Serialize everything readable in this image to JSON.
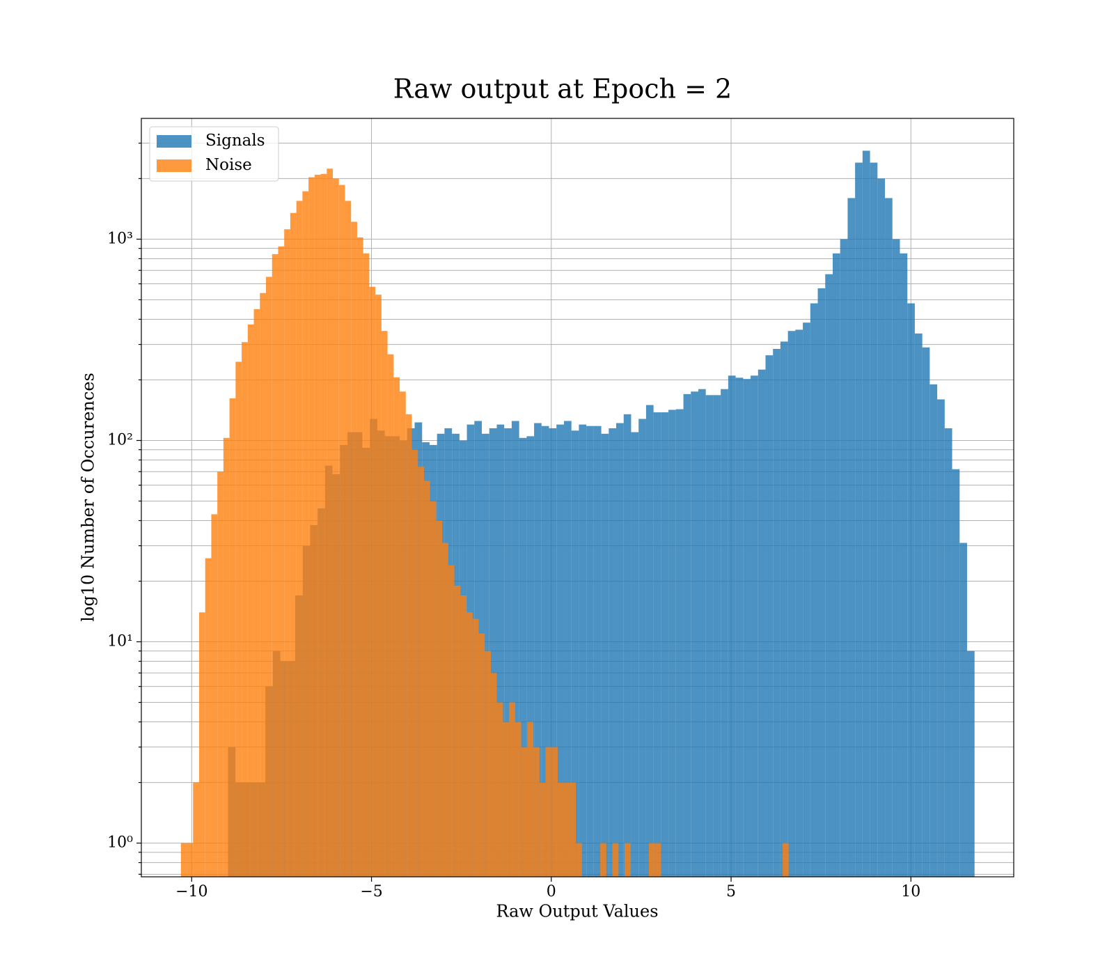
{
  "chart_data": {
    "type": "histogram",
    "title": "Raw output at Epoch = 2",
    "xlabel": "Raw Output Values",
    "ylabel": "log10 Number of Occurences",
    "log_y": true,
    "grid": true,
    "legend_loc": "upper left",
    "xlim": [
      -11.4,
      12.86
    ],
    "ylim": [
      0.68,
      3981
    ],
    "xticks": [
      {
        "value": -10,
        "label": "−10"
      },
      {
        "value": -5,
        "label": "−5"
      },
      0,
      5,
      10
    ],
    "yticks": [
      {
        "value": 1,
        "label": "10⁰"
      },
      {
        "value": 10,
        "label": "10¹"
      },
      {
        "value": 100,
        "label": "10²"
      },
      {
        "value": 1000,
        "label": "10³"
      }
    ],
    "yminorticks": [
      0.7,
      0.8,
      0.9,
      2,
      3,
      4,
      5,
      6,
      7,
      8,
      9,
      20,
      30,
      40,
      50,
      60,
      70,
      80,
      90,
      200,
      300,
      400,
      500,
      600,
      700,
      800,
      900,
      2000,
      3000
    ],
    "series": [
      {
        "name": "Signals",
        "color": "#1f77b4",
        "bins": [
          -8.99,
          -8.782,
          -8.575,
          -8.367,
          -8.16,
          -7.952,
          -7.744,
          -7.537,
          -7.329,
          -7.122,
          -6.914,
          -6.706,
          -6.499,
          -6.291,
          -6.084,
          -5.876,
          -5.668,
          -5.461,
          -5.253,
          -5.046,
          -4.838,
          -4.63,
          -4.423,
          -4.215,
          -4.008,
          -3.8,
          -3.592,
          -3.385,
          -3.177,
          -2.97,
          -2.762,
          -2.554,
          -2.347,
          -2.139,
          -1.932,
          -1.724,
          -1.516,
          -1.309,
          -1.101,
          -0.894,
          -0.686,
          -0.478,
          -0.271,
          -0.063,
          0.144,
          0.352,
          0.56,
          0.767,
          0.975,
          1.182,
          1.39,
          1.598,
          1.805,
          2.013,
          2.22,
          2.428,
          2.636,
          2.843,
          3.051,
          3.258,
          3.466,
          3.674,
          3.881,
          4.089,
          4.296,
          4.504,
          4.712,
          4.919,
          5.127,
          5.334,
          5.542,
          5.75,
          5.957,
          6.165,
          6.372,
          6.58,
          6.788,
          6.995,
          7.203,
          7.41,
          7.618,
          7.826,
          8.033,
          8.241,
          8.448,
          8.656,
          8.864,
          9.071,
          9.279,
          9.486,
          9.694,
          9.902,
          10.109,
          10.317,
          10.524,
          10.732,
          10.94,
          11.147,
          11.355,
          11.562,
          11.77
        ],
        "values": [
          3,
          2,
          2,
          2,
          2,
          6,
          9,
          8,
          8,
          17,
          30,
          38,
          46,
          75,
          68,
          95,
          110,
          110,
          92,
          128,
          112,
          105,
          105,
          100,
          115,
          123,
          98,
          95,
          108,
          115,
          108,
          100,
          120,
          125,
          108,
          115,
          120,
          115,
          125,
          103,
          105,
          122,
          118,
          115,
          120,
          125,
          112,
          120,
          118,
          118,
          108,
          115,
          122,
          135,
          110,
          128,
          150,
          138,
          138,
          142,
          143,
          170,
          175,
          180,
          168,
          168,
          180,
          210,
          205,
          202,
          210,
          225,
          265,
          285,
          310,
          350,
          355,
          385,
          480,
          570,
          670,
          850,
          1000,
          1600,
          2400,
          2750,
          2400,
          2000,
          1600,
          1000,
          850,
          480,
          340,
          290,
          190,
          160,
          115,
          72,
          31,
          9
        ]
      },
      {
        "name": "Noise",
        "color": "#ff7f0e",
        "bins": [
          -10.3,
          -10.131,
          -9.962,
          -9.793,
          -9.624,
          -9.455,
          -9.286,
          -9.117,
          -8.948,
          -8.779,
          -8.61,
          -8.441,
          -8.272,
          -8.103,
          -7.934,
          -7.765,
          -7.596,
          -7.427,
          -7.258,
          -7.089,
          -6.92,
          -6.751,
          -6.582,
          -6.413,
          -6.244,
          -6.075,
          -5.906,
          -5.737,
          -5.568,
          -5.399,
          -5.23,
          -5.061,
          -4.892,
          -4.723,
          -4.554,
          -4.385,
          -4.216,
          -4.047,
          -3.878,
          -3.709,
          -3.54,
          -3.371,
          -3.202,
          -3.033,
          -2.864,
          -2.695,
          -2.526,
          -2.357,
          -2.188,
          -2.019,
          -1.85,
          -1.681,
          -1.512,
          -1.343,
          -1.174,
          -1.005,
          -0.836,
          -0.667,
          -0.498,
          -0.329,
          -0.16,
          0.009,
          0.178,
          0.347,
          0.516,
          0.685,
          0.854,
          1.023,
          1.192,
          1.361,
          1.53,
          1.699,
          1.868,
          2.037,
          2.206,
          2.375,
          2.544,
          2.713,
          2.882,
          3.051,
          3.22,
          3.389,
          3.558,
          3.727,
          3.896,
          4.065,
          4.234,
          4.403,
          4.572,
          4.741,
          4.91,
          5.079,
          5.248,
          5.417,
          5.586,
          5.755,
          5.924,
          6.093,
          6.262,
          6.431,
          6.6
        ],
        "values": [
          1,
          1,
          2,
          14,
          26,
          43,
          70,
          103,
          162,
          246,
          308,
          377,
          449,
          540,
          650,
          843,
          920,
          1120,
          1350,
          1550,
          1730,
          2030,
          2090,
          2110,
          2240,
          2000,
          1860,
          1550,
          1220,
          1020,
          850,
          580,
          530,
          350,
          268,
          206,
          175,
          135,
          90,
          74,
          63,
          50,
          40,
          31,
          24,
          19,
          17,
          14,
          13,
          11,
          9,
          7,
          5,
          4,
          5,
          4,
          3,
          4,
          3,
          2,
          3,
          3,
          2,
          2,
          2,
          1,
          0,
          0,
          0,
          1,
          0,
          1,
          0,
          1,
          0,
          0,
          0,
          1,
          1,
          0,
          0,
          0,
          0,
          0,
          0,
          0,
          0,
          0,
          0,
          0,
          0,
          0,
          0,
          0,
          0,
          0,
          0,
          0,
          0,
          1
        ]
      }
    ]
  }
}
